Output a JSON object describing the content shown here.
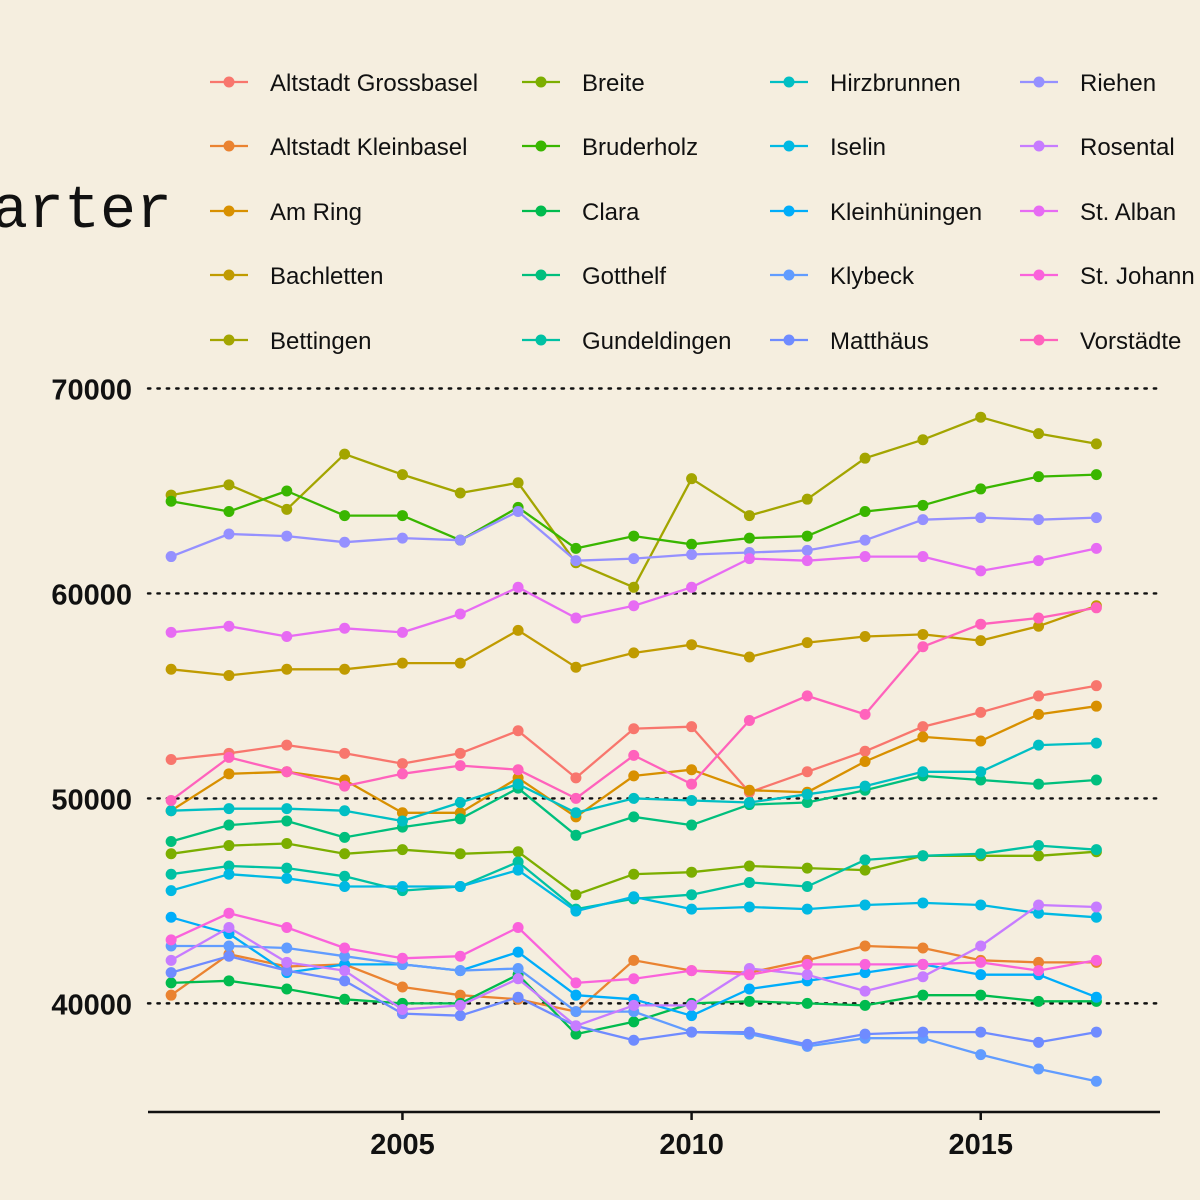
{
  "chart_data": {
    "type": "line",
    "title": "arter",
    "xlabel": "",
    "ylabel": "",
    "x": [
      2001,
      2002,
      2003,
      2004,
      2005,
      2006,
      2007,
      2008,
      2009,
      2010,
      2011,
      2012,
      2013,
      2014,
      2015,
      2016,
      2017
    ],
    "xlim": [
      2000.6,
      2018.1
    ],
    "ylim": [
      34700,
      71000
    ],
    "xticks": [
      2005,
      2010,
      2015
    ],
    "yticks": [
      40000,
      50000,
      60000,
      70000
    ],
    "grid": "horizontal dotted",
    "legend_position": "top",
    "series": [
      {
        "name": "Altstadt Grossbasel",
        "color": "#F8766D",
        "values": [
          51900,
          52200,
          52600,
          52200,
          51700,
          52200,
          53300,
          51000,
          53400,
          53500,
          50300,
          51300,
          52300,
          53500,
          54200,
          55000,
          55500
        ]
      },
      {
        "name": "Altstadt Kleinbasel",
        "color": "#EA8331",
        "values": [
          40400,
          42400,
          41800,
          41900,
          40800,
          40400,
          40200,
          39600,
          42100,
          41600,
          41500,
          42100,
          42800,
          42700,
          42100,
          42000,
          42000
        ]
      },
      {
        "name": "Am Ring",
        "color": "#D89000",
        "values": [
          49400,
          51200,
          51300,
          50900,
          49300,
          49300,
          51000,
          49100,
          51100,
          51400,
          50400,
          50300,
          51800,
          53000,
          52800,
          54100,
          54500
        ]
      },
      {
        "name": "Bachletten",
        "color": "#C09B00",
        "values": [
          56300,
          56000,
          56300,
          56300,
          56600,
          56600,
          58200,
          56400,
          57100,
          57500,
          56900,
          57600,
          57900,
          58000,
          57700,
          58400,
          59400
        ]
      },
      {
        "name": "Bettingen",
        "color": "#A3A500",
        "values": [
          64800,
          65300,
          64100,
          66800,
          65800,
          64900,
          65400,
          61500,
          60300,
          65600,
          63800,
          64600,
          66600,
          67500,
          68600,
          67800,
          67300
        ]
      },
      {
        "name": "Breite",
        "color": "#7CAE00",
        "values": [
          47300,
          47700,
          47800,
          47300,
          47500,
          47300,
          47400,
          45300,
          46300,
          46400,
          46700,
          46600,
          46500,
          47200,
          47200,
          47200,
          47400
        ]
      },
      {
        "name": "Bruderholz",
        "color": "#39B600",
        "values": [
          64500,
          64000,
          65000,
          63800,
          63800,
          62600,
          64200,
          62200,
          62800,
          62400,
          62700,
          62800,
          64000,
          64300,
          65100,
          65700,
          65800
        ]
      },
      {
        "name": "Clara",
        "color": "#00BB4E",
        "values": [
          41000,
          41100,
          40700,
          40200,
          40000,
          40000,
          41400,
          38500,
          39100,
          40000,
          40100,
          40000,
          39900,
          40400,
          40400,
          40100,
          40100
        ]
      },
      {
        "name": "Gotthelf",
        "color": "#00BF7D",
        "values": [
          47900,
          48700,
          48900,
          48100,
          48600,
          49000,
          50500,
          48200,
          49100,
          48700,
          49700,
          49800,
          50400,
          51100,
          50900,
          50700,
          50900
        ]
      },
      {
        "name": "Gundeldingen",
        "color": "#00C1A3",
        "values": [
          46300,
          46700,
          46600,
          46200,
          45500,
          45700,
          46900,
          44600,
          45100,
          45300,
          45900,
          45700,
          47000,
          47200,
          47300,
          47700,
          47500
        ]
      },
      {
        "name": "Hirzbrunnen",
        "color": "#00BFC4",
        "values": [
          49400,
          49500,
          49500,
          49400,
          48900,
          49800,
          50700,
          49300,
          50000,
          49900,
          49800,
          50200,
          50600,
          51300,
          51300,
          52600,
          52700
        ]
      },
      {
        "name": "Iselin",
        "color": "#00B9E3",
        "values": [
          45500,
          46300,
          46100,
          45700,
          45700,
          45700,
          46500,
          44500,
          45200,
          44600,
          44700,
          44600,
          44800,
          44900,
          44800,
          44400,
          44200
        ]
      },
      {
        "name": "Kleinhüningen",
        "color": "#00ADFA",
        "values": [
          44200,
          43400,
          41500,
          41900,
          41900,
          41600,
          42500,
          40400,
          40200,
          39400,
          40700,
          41100,
          41500,
          41900,
          41400,
          41400,
          40300
        ]
      },
      {
        "name": "Klybeck",
        "color": "#619CFF",
        "values": [
          42800,
          42800,
          42700,
          42300,
          41900,
          41600,
          41700,
          39600,
          39600,
          38600,
          38500,
          37900,
          38300,
          38300,
          37500,
          36800,
          36200
        ]
      },
      {
        "name": "Matthäus",
        "color": "#6F8BFF",
        "values": [
          41500,
          42300,
          41600,
          41100,
          39500,
          39400,
          40300,
          38900,
          38200,
          38600,
          38600,
          38000,
          38500,
          38600,
          38600,
          38100,
          38600
        ]
      },
      {
        "name": "Riehen",
        "color": "#9590FF",
        "values": [
          61800,
          62900,
          62800,
          62500,
          62700,
          62600,
          64000,
          61600,
          61700,
          61900,
          62000,
          62100,
          62600,
          63600,
          63700,
          63600,
          63700
        ]
      },
      {
        "name": "Rosental",
        "color": "#C77CFF",
        "values": [
          42100,
          43700,
          42000,
          41600,
          39700,
          39900,
          41200,
          38900,
          39900,
          39900,
          41700,
          41400,
          40600,
          41300,
          42800,
          44800,
          44700
        ]
      },
      {
        "name": "St. Alban",
        "color": "#E76BF3",
        "values": [
          58100,
          58400,
          57900,
          58300,
          58100,
          59000,
          60300,
          58800,
          59400,
          60300,
          61700,
          61600,
          61800,
          61800,
          61100,
          61600,
          62200
        ]
      },
      {
        "name": "St. Johann",
        "color": "#FA62DB",
        "values": [
          43100,
          44400,
          43700,
          42700,
          42200,
          42300,
          43700,
          41000,
          41200,
          41600,
          41400,
          41900,
          41900,
          41900,
          42000,
          41600,
          42100
        ]
      },
      {
        "name": "Vorstädte",
        "color": "#FF62BC",
        "values": [
          49900,
          52000,
          51300,
          50600,
          51200,
          51600,
          51400,
          50000,
          52100,
          50700,
          53800,
          55000,
          54100,
          57400,
          58500,
          58800,
          59300
        ]
      }
    ]
  }
}
